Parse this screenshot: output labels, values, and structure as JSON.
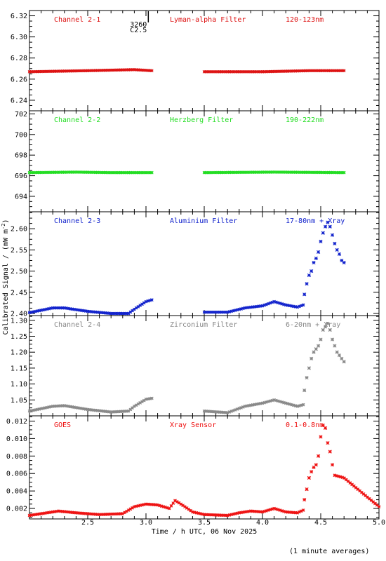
{
  "chart_data": {
    "type": "scatter",
    "date": "06 Nov 2025",
    "xlabel": "Time / h UTC, 06 Nov 2025",
    "ylabel": "Calibrated Signal / (mW m",
    "ylabel_sup": "-2",
    "ylabel_close": ")",
    "xlim": [
      2.0,
      5.0
    ],
    "x_ticks": [
      "2.5",
      "3.0",
      "3.5",
      "4.0",
      "4.5",
      "5.0"
    ],
    "footnote": "(1 minute averages)",
    "flare_marker": {
      "x": 3.02,
      "text_1": "3260",
      "text_2": "C2.5"
    },
    "panels": [
      {
        "channel": "Channel 2-1",
        "filter": "Lyman-alpha Filter",
        "band": "120-123nm",
        "color": "#dd1111",
        "ylim": [
          6.23,
          6.325
        ],
        "y_ticks": [
          "6.24",
          "6.26",
          "6.28",
          "6.30",
          "6.32"
        ],
        "segments": [
          {
            "x0": 2.0,
            "x1": 3.05,
            "points": [
              [
                2.0,
                6.267
              ],
              [
                2.5,
                6.268
              ],
              [
                2.9,
                6.269
              ],
              [
                3.05,
                6.268
              ]
            ]
          },
          {
            "x0": 3.5,
            "x1": 4.7,
            "points": [
              [
                3.5,
                6.267
              ],
              [
                4.0,
                6.267
              ],
              [
                4.4,
                6.268
              ],
              [
                4.7,
                6.268
              ]
            ]
          }
        ]
      },
      {
        "channel": "Channel 2-2",
        "filter": "Herzberg Filter",
        "band": "190-222nm",
        "color": "#22dd22",
        "ylim": [
          692.5,
          702.3
        ],
        "y_ticks": [
          "694",
          "696",
          "698",
          "700",
          "702"
        ],
        "segments": [
          {
            "x0": 2.0,
            "x1": 3.05,
            "points": [
              [
                2.0,
                696.3
              ],
              [
                2.4,
                696.35
              ],
              [
                2.7,
                696.3
              ],
              [
                3.05,
                696.3
              ]
            ]
          },
          {
            "x0": 3.5,
            "x1": 4.7,
            "points": [
              [
                3.5,
                696.3
              ],
              [
                4.1,
                696.35
              ],
              [
                4.7,
                696.3
              ]
            ]
          }
        ]
      },
      {
        "channel": "Channel 2-3",
        "filter": "Aluminium Filter",
        "band": "17-80nm + Xray",
        "color": "#1122cc",
        "ylim": [
          2.395,
          2.64
        ],
        "y_ticks": [
          "2.40",
          "2.45",
          "2.50",
          "2.55",
          "2.60"
        ],
        "segments": [
          {
            "x0": 2.0,
            "x1": 3.05,
            "points": [
              [
                2.0,
                2.402
              ],
              [
                2.2,
                2.413
              ],
              [
                2.3,
                2.413
              ],
              [
                2.5,
                2.405
              ],
              [
                2.7,
                2.4
              ],
              [
                2.85,
                2.4
              ],
              [
                2.9,
                2.41
              ],
              [
                3.0,
                2.428
              ],
              [
                3.05,
                2.432
              ]
            ]
          },
          {
            "x0": 3.5,
            "x1": 4.35,
            "points": [
              [
                3.5,
                2.403
              ],
              [
                3.7,
                2.403
              ],
              [
                3.85,
                2.413
              ],
              [
                4.0,
                2.418
              ],
              [
                4.1,
                2.428
              ],
              [
                4.2,
                2.42
              ],
              [
                4.3,
                2.415
              ],
              [
                4.35,
                2.42
              ]
            ]
          }
        ],
        "sparse": [
          [
            4.36,
            2.445
          ],
          [
            4.38,
            2.47
          ],
          [
            4.4,
            2.49
          ],
          [
            4.42,
            2.5
          ],
          [
            4.44,
            2.52
          ],
          [
            4.46,
            2.53
          ],
          [
            4.48,
            2.545
          ],
          [
            4.5,
            2.57
          ],
          [
            4.52,
            2.59
          ],
          [
            4.54,
            2.605
          ],
          [
            4.56,
            2.615
          ],
          [
            4.58,
            2.605
          ],
          [
            4.6,
            2.585
          ],
          [
            4.62,
            2.565
          ],
          [
            4.64,
            2.55
          ],
          [
            4.66,
            2.54
          ],
          [
            4.68,
            2.525
          ],
          [
            4.7,
            2.52
          ]
        ]
      },
      {
        "channel": "Channel 2-4",
        "filter": "Zirconium Filter",
        "band": "6-20nm + Xray",
        "color": "#888888",
        "ylim": [
          1.0,
          1.315
        ],
        "y_ticks": [
          "1.05",
          "1.10",
          "1.15",
          "1.20",
          "1.25",
          "1.30"
        ],
        "segments": [
          {
            "x0": 2.0,
            "x1": 3.05,
            "points": [
              [
                2.0,
                1.015
              ],
              [
                2.2,
                1.03
              ],
              [
                2.3,
                1.032
              ],
              [
                2.5,
                1.02
              ],
              [
                2.7,
                1.012
              ],
              [
                2.85,
                1.015
              ],
              [
                2.9,
                1.03
              ],
              [
                3.0,
                1.052
              ],
              [
                3.05,
                1.055
              ]
            ]
          },
          {
            "x0": 3.5,
            "x1": 4.35,
            "points": [
              [
                3.5,
                1.015
              ],
              [
                3.7,
                1.01
              ],
              [
                3.85,
                1.03
              ],
              [
                4.0,
                1.04
              ],
              [
                4.1,
                1.05
              ],
              [
                4.2,
                1.04
              ],
              [
                4.3,
                1.03
              ],
              [
                4.35,
                1.035
              ]
            ]
          }
        ],
        "sparse": [
          [
            4.36,
            1.08
          ],
          [
            4.38,
            1.12
          ],
          [
            4.4,
            1.15
          ],
          [
            4.42,
            1.18
          ],
          [
            4.44,
            1.2
          ],
          [
            4.46,
            1.21
          ],
          [
            4.48,
            1.22
          ],
          [
            4.5,
            1.24
          ],
          [
            4.52,
            1.27
          ],
          [
            4.54,
            1.28
          ],
          [
            4.56,
            1.29
          ],
          [
            4.58,
            1.27
          ],
          [
            4.6,
            1.24
          ],
          [
            4.62,
            1.22
          ],
          [
            4.64,
            1.2
          ],
          [
            4.66,
            1.19
          ],
          [
            4.68,
            1.18
          ],
          [
            4.7,
            1.17
          ]
        ]
      },
      {
        "channel": "GOES",
        "filter": "Xray Sensor",
        "band": "0.1-0.8nm",
        "color": "#ee1111",
        "ylim": [
          0.0008,
          0.0126
        ],
        "y_ticks": [
          "0.002",
          "0.004",
          "0.006",
          "0.008",
          "0.010",
          "0.012"
        ],
        "segments": [
          {
            "x0": 2.0,
            "x1": 4.35,
            "points": [
              [
                2.0,
                0.0012
              ],
              [
                2.2,
                0.0016
              ],
              [
                2.25,
                0.0017
              ],
              [
                2.4,
                0.0015
              ],
              [
                2.6,
                0.0013
              ],
              [
                2.8,
                0.0014
              ],
              [
                2.9,
                0.0022
              ],
              [
                3.0,
                0.0025
              ],
              [
                3.1,
                0.0024
              ],
              [
                3.2,
                0.002
              ],
              [
                3.25,
                0.0029
              ],
              [
                3.3,
                0.0025
              ],
              [
                3.4,
                0.0016
              ],
              [
                3.5,
                0.0013
              ],
              [
                3.7,
                0.0012
              ],
              [
                3.8,
                0.0015
              ],
              [
                3.9,
                0.0017
              ],
              [
                4.0,
                0.0016
              ],
              [
                4.1,
                0.002
              ],
              [
                4.2,
                0.0016
              ],
              [
                4.3,
                0.0015
              ],
              [
                4.35,
                0.0018
              ]
            ]
          },
          {
            "x0": 4.62,
            "x1": 5.0,
            "points": [
              [
                4.62,
                0.0058
              ],
              [
                4.7,
                0.0055
              ],
              [
                4.8,
                0.0044
              ],
              [
                4.9,
                0.0033
              ],
              [
                5.0,
                0.0022
              ]
            ]
          }
        ],
        "sparse": [
          [
            4.36,
            0.003
          ],
          [
            4.38,
            0.0042
          ],
          [
            4.4,
            0.0055
          ],
          [
            4.42,
            0.0062
          ],
          [
            4.44,
            0.0067
          ],
          [
            4.46,
            0.007
          ],
          [
            4.48,
            0.008
          ],
          [
            4.5,
            0.0102
          ],
          [
            4.52,
            0.0115
          ],
          [
            4.54,
            0.0112
          ],
          [
            4.56,
            0.0095
          ],
          [
            4.58,
            0.0085
          ],
          [
            4.6,
            0.007
          ]
        ]
      }
    ]
  }
}
